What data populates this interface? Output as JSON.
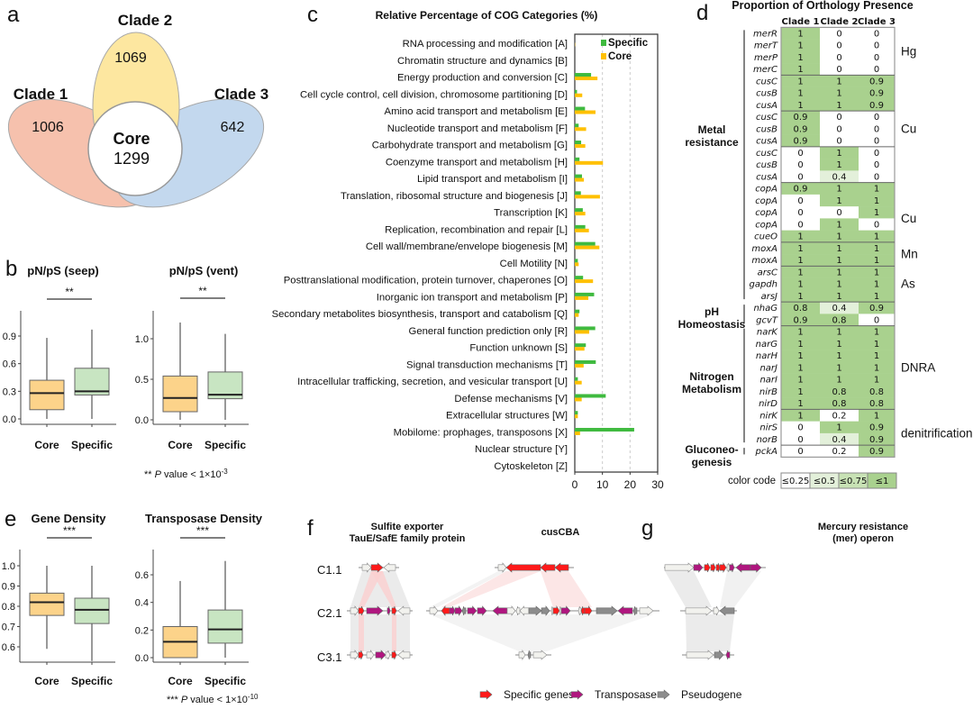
{
  "panels": {
    "a": "a",
    "b": "b",
    "c": "c",
    "d": "d",
    "e": "e",
    "f": "f",
    "g": "g"
  },
  "footnotes": {
    "b": {
      "stars": "**",
      "p": "P",
      "text": " value < 1×10",
      "exp": "-3"
    },
    "e": {
      "stars": "***",
      "p": "P",
      "text": " value < 1×10",
      "exp": "-10"
    }
  },
  "colors": {
    "core": "#fcd38a",
    "specific": "#c8e5c2",
    "bar_specific": "#3fba3f",
    "bar_core": "#ffc000",
    "clade1": "#f6c1ad",
    "clade2": "#fde7a0",
    "clade3": "#c3d8ee",
    "specific_gene": "#ff1a1a",
    "transposase": "#b0167f",
    "pseudogene": "#8c8c8c",
    "other_gene": "#f2f2ee",
    "level_025": "#ffffff",
    "level_05": "#e3f0da",
    "level_075": "#c8e2b5",
    "level_1": "#a9d18e"
  },
  "gene_maps": {
    "titles": {
      "sulfite_line1": "Sulfite exporter",
      "sulfite_line2": "TauE/SafE family protein",
      "cus": "cusCBA",
      "mer_line1": "Mercury resistance",
      "mer_line2": "(mer) operon"
    },
    "rows": [
      "C1.1",
      "C2.1",
      "C3.1"
    ],
    "legend": [
      {
        "label": "Specific genes",
        "type": "specific"
      },
      {
        "label": "Transposase",
        "type": "transposase"
      },
      {
        "label": "Pseudogene",
        "type": "pseudogene"
      }
    ]
  },
  "chart_data": [
    {
      "type": "venn",
      "sets": [
        {
          "name": "Clade 1",
          "value": 1006
        },
        {
          "name": "Clade 2",
          "value": 1069
        },
        {
          "name": "Clade 3",
          "value": 642
        }
      ],
      "core": {
        "name": "Core",
        "value": 1299
      }
    },
    {
      "type": "boxplot",
      "title": "pN/pS (seep)",
      "categories": [
        "Core",
        "Specific"
      ],
      "boxes": [
        {
          "min": 0.0,
          "q1": 0.1,
          "median": 0.28,
          "q3": 0.42,
          "max": 0.88
        },
        {
          "min": 0.0,
          "q1": 0.26,
          "median": 0.3,
          "q3": 0.55,
          "max": 0.97
        }
      ],
      "yticks": [
        "0.0",
        "0.3",
        "0.6",
        "0.9"
      ],
      "ytick_values": [
        0,
        0.3,
        0.6,
        0.9
      ],
      "ylim": [
        -0.03,
        1.15
      ],
      "significance": "**"
    },
    {
      "type": "boxplot",
      "title": "pN/pS (vent)",
      "categories": [
        "Core",
        "Specific"
      ],
      "boxes": [
        {
          "min": 0.0,
          "q1": 0.1,
          "median": 0.27,
          "q3": 0.54,
          "max": 1.2
        },
        {
          "min": 0.0,
          "q1": 0.26,
          "median": 0.31,
          "q3": 0.59,
          "max": 1.06
        }
      ],
      "yticks": [
        "0.0",
        "0.5",
        "1.0"
      ],
      "ytick_values": [
        0,
        0.5,
        1.0
      ],
      "ylim": [
        -0.05,
        1.35
      ],
      "significance": "**"
    },
    {
      "type": "bar",
      "orientation": "horizontal",
      "title": "Relative Percentage of COG Categories (%)",
      "categories": [
        "RNA processing and modification [A]",
        "Chromatin structure and dynamics [B]",
        "Energy production and conversion [C]",
        "Cell cycle control, cell division, chromosome partitioning [D]",
        "Amino acid transport and metabolism [E]",
        "Nucleotide transport and metabolism [F]",
        "Carbohydrate transport and metabolism [G]",
        "Coenzyme transport and metabolism [H]",
        "Lipid transport and metabolism [I]",
        "Translation, ribosomal structure and biogenesis [J]",
        "Transcription [K]",
        "Replication, recombination and repair [L]",
        "Cell wall/membrane/envelope biogenesis [M]",
        "Cell Motility [N]",
        "Posttranslational modification, protein turnover, chaperones [O]",
        "Inorganic ion transport and metabolism [P]",
        "Secondary metabolites biosynthesis, transport and catabolism [Q]",
        "General function prediction only [R]",
        "Function unknown [S]",
        "Signal transduction mechanisms [T]",
        "Intracellular trafficking, secretion, and vesicular transport [U]",
        "Defense mechanisms [V]",
        "Extracellular structures [W]",
        "Mobilome: prophages, transposons [X]",
        "Nuclear structure [Y]",
        "Cytoskeleton [Z]"
      ],
      "series": [
        {
          "name": "Specific",
          "values": [
            0,
            0,
            5.9,
            0.8,
            3.7,
            1.4,
            2.3,
            1.7,
            2.6,
            2.2,
            2.9,
            3.8,
            7.4,
            1.1,
            3.0,
            7.0,
            1.7,
            7.4,
            4.0,
            7.6,
            1.1,
            11.2,
            1.1,
            21.5,
            0,
            0
          ]
        },
        {
          "name": "Core",
          "values": [
            0.1,
            0,
            8.2,
            2.7,
            7.5,
            4.1,
            3.8,
            10.2,
            3.3,
            9.1,
            3.8,
            5.1,
            8.9,
            1.4,
            6.6,
            4.9,
            1.4,
            5.2,
            3.5,
            3.2,
            2.5,
            2.5,
            1.1,
            1.9,
            0,
            0
          ]
        }
      ],
      "xticks": [
        "0",
        "10",
        "20",
        "30"
      ],
      "xlim": [
        0,
        30
      ],
      "grid": "dashed vertical at 10 and 20",
      "legend": "top-right"
    },
    {
      "type": "heatmap",
      "title": "Proportion of Orthology Presence",
      "columns": [
        "Clade 1",
        "Clade 2",
        "Clade 3"
      ],
      "rows": [
        {
          "gene": "merR",
          "values": [
            "1",
            "0",
            "0"
          ]
        },
        {
          "gene": "merT",
          "values": [
            "1",
            "0",
            "0"
          ]
        },
        {
          "gene": "merP",
          "values": [
            "1",
            "0",
            "0"
          ]
        },
        {
          "gene": "merC",
          "values": [
            "1",
            "0",
            "0"
          ]
        },
        {
          "gene": "cusC",
          "values": [
            "1",
            "1",
            "0.9"
          ]
        },
        {
          "gene": "cusB",
          "values": [
            "1",
            "1",
            "0.9"
          ]
        },
        {
          "gene": "cusA",
          "values": [
            "1",
            "1",
            "0.9"
          ]
        },
        {
          "gene": "cusC",
          "values": [
            "0.9",
            "0",
            "0"
          ]
        },
        {
          "gene": "cusB",
          "values": [
            "0.9",
            "0",
            "0"
          ]
        },
        {
          "gene": "cusA",
          "values": [
            "0.9",
            "0",
            "0"
          ]
        },
        {
          "gene": "cusC",
          "values": [
            "0",
            "1",
            "0"
          ]
        },
        {
          "gene": "cusB",
          "values": [
            "0",
            "1",
            "0"
          ]
        },
        {
          "gene": "cusA",
          "values": [
            "0",
            "0.4",
            "0"
          ]
        },
        {
          "gene": "copA",
          "values": [
            "0.9",
            "1",
            "1"
          ]
        },
        {
          "gene": "copA",
          "values": [
            "0",
            "1",
            "1"
          ]
        },
        {
          "gene": "copA",
          "values": [
            "0",
            "0",
            "1"
          ]
        },
        {
          "gene": "copA",
          "values": [
            "0",
            "1",
            "0"
          ]
        },
        {
          "gene": "cueO",
          "values": [
            "1",
            "1",
            "1"
          ]
        },
        {
          "gene": "moxA",
          "values": [
            "1",
            "1",
            "1"
          ]
        },
        {
          "gene": "moxA",
          "values": [
            "1",
            "1",
            "1"
          ]
        },
        {
          "gene": "arsC",
          "values": [
            "1",
            "1",
            "1"
          ]
        },
        {
          "gene": "gapdh",
          "values": [
            "1",
            "1",
            "1"
          ]
        },
        {
          "gene": "arsJ",
          "values": [
            "1",
            "1",
            "1"
          ]
        },
        {
          "gene": "nhaG",
          "values": [
            "0.8",
            "0.4",
            "0.9"
          ]
        },
        {
          "gene": "gcvT",
          "values": [
            "0.9",
            "0.8",
            "0"
          ]
        },
        {
          "gene": "narK",
          "values": [
            "1",
            "1",
            "1"
          ]
        },
        {
          "gene": "narG",
          "values": [
            "1",
            "1",
            "1"
          ]
        },
        {
          "gene": "narH",
          "values": [
            "1",
            "1",
            "1"
          ]
        },
        {
          "gene": "narJ",
          "values": [
            "1",
            "1",
            "1"
          ]
        },
        {
          "gene": "narI",
          "values": [
            "1",
            "1",
            "1"
          ]
        },
        {
          "gene": "nirB",
          "values": [
            "1",
            "0.8",
            "0.8"
          ]
        },
        {
          "gene": "nirD",
          "values": [
            "1",
            "0.8",
            "0.8"
          ]
        },
        {
          "gene": "nirK",
          "values": [
            "1",
            "0.2",
            "1"
          ]
        },
        {
          "gene": "nirS",
          "values": [
            "0",
            "1",
            "0.9"
          ]
        },
        {
          "gene": "norB",
          "values": [
            "0",
            "0.4",
            "0.9"
          ]
        },
        {
          "gene": "pckA",
          "values": [
            "0",
            "0.2",
            "0.9"
          ]
        }
      ],
      "groups": [
        {
          "label_line1": "Metal",
          "label_line2": "resistance"
        },
        {
          "label_line1": "pH",
          "label_line2": "Homeostasis"
        },
        {
          "label_line1": "Nitrogen",
          "label_line2": "Metabolism"
        },
        {
          "label_line1": "Gluconeo-",
          "label_line2": "genesis"
        }
      ],
      "subgroups": [
        "Hg",
        "Cu",
        "Cu",
        "Mn",
        "As",
        "DNRA",
        "denitrification"
      ],
      "color_code": {
        "label": "color code",
        "levels": [
          "≤0.25",
          "≤0.5",
          "≤0.75",
          "≤1"
        ]
      }
    },
    {
      "type": "boxplot",
      "title": "Gene Density",
      "categories": [
        "Core",
        "Specific"
      ],
      "boxes": [
        {
          "min": 0.59,
          "q1": 0.755,
          "median": 0.82,
          "q3": 0.865,
          "max": 1.0
        },
        {
          "min": 0.53,
          "q1": 0.715,
          "median": 0.783,
          "q3": 0.84,
          "max": 1.0
        }
      ],
      "yticks": [
        "0.6",
        "0.7",
        "0.8",
        "0.9",
        "1.0"
      ],
      "ytick_values": [
        0.6,
        0.7,
        0.8,
        0.9,
        1.0
      ],
      "ylim": [
        0.52,
        1.08
      ],
      "significance": "***"
    },
    {
      "type": "boxplot",
      "title": "Transposase Density",
      "categories": [
        "Core",
        "Specific"
      ],
      "boxes": [
        {
          "min": 0.0,
          "q1": 0.0,
          "median": 0.115,
          "q3": 0.225,
          "max": 0.555
        },
        {
          "min": 0.0,
          "q1": 0.105,
          "median": 0.205,
          "q3": 0.345,
          "max": 0.7
        }
      ],
      "yticks": [
        "0.0",
        "0.2",
        "0.4",
        "0.6"
      ],
      "ytick_values": [
        0,
        0.2,
        0.4,
        0.6
      ],
      "ylim": [
        -0.02,
        0.75
      ],
      "significance": "***"
    }
  ]
}
